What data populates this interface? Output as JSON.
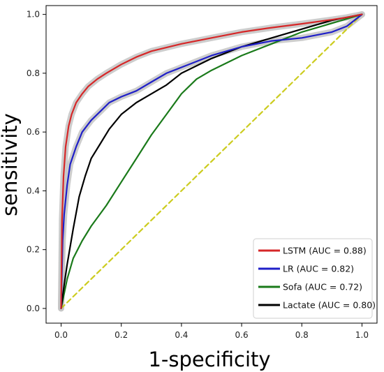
{
  "chart_data": {
    "type": "line",
    "xlabel": "1-specificity",
    "ylabel": "sensitivity",
    "xlim": [
      -0.05,
      1.05
    ],
    "ylim": [
      -0.05,
      1.03
    ],
    "xticks": [
      "0.0",
      "0.2",
      "0.4",
      "0.6",
      "0.8",
      "1.0"
    ],
    "yticks": [
      "0.0",
      "0.2",
      "0.4",
      "0.6",
      "0.8",
      "1.0"
    ],
    "grid": false,
    "legend_position": "bottom-right",
    "series": [
      {
        "name": "LSTM (AUC = 0.88)",
        "color": "#d62728",
        "band": true,
        "x": [
          0,
          0.003,
          0.008,
          0.015,
          0.025,
          0.035,
          0.05,
          0.07,
          0.09,
          0.12,
          0.15,
          0.2,
          0.25,
          0.3,
          0.4,
          0.5,
          0.6,
          0.7,
          0.8,
          0.9,
          0.95,
          1.0
        ],
        "y": [
          0,
          0.3,
          0.45,
          0.55,
          0.62,
          0.66,
          0.7,
          0.73,
          0.755,
          0.78,
          0.8,
          0.83,
          0.855,
          0.875,
          0.9,
          0.92,
          0.94,
          0.955,
          0.968,
          0.982,
          0.99,
          1.0
        ]
      },
      {
        "name": "LR (AUC = 0.82)",
        "color": "#1f1fc8",
        "band": true,
        "x": [
          0,
          0.005,
          0.01,
          0.02,
          0.03,
          0.05,
          0.07,
          0.1,
          0.13,
          0.16,
          0.2,
          0.25,
          0.3,
          0.35,
          0.4,
          0.5,
          0.6,
          0.7,
          0.8,
          0.9,
          0.95,
          1.0
        ],
        "y": [
          0,
          0.23,
          0.32,
          0.42,
          0.49,
          0.55,
          0.6,
          0.64,
          0.67,
          0.7,
          0.72,
          0.74,
          0.77,
          0.8,
          0.82,
          0.86,
          0.89,
          0.91,
          0.92,
          0.94,
          0.96,
          1.0
        ]
      },
      {
        "name": "Sofa (AUC = 0.72)",
        "color": "#1a7a1a",
        "band": false,
        "x": [
          0,
          0.02,
          0.04,
          0.07,
          0.1,
          0.15,
          0.2,
          0.25,
          0.3,
          0.35,
          0.4,
          0.45,
          0.5,
          0.6,
          0.7,
          0.8,
          0.9,
          1.0
        ],
        "y": [
          0,
          0.1,
          0.17,
          0.23,
          0.28,
          0.35,
          0.43,
          0.51,
          0.59,
          0.66,
          0.73,
          0.78,
          0.81,
          0.86,
          0.9,
          0.94,
          0.97,
          1.0
        ]
      },
      {
        "name": "Lactate (AUC = 0.80)",
        "color": "#000000",
        "band": false,
        "x": [
          0,
          0.01,
          0.02,
          0.04,
          0.06,
          0.08,
          0.1,
          0.13,
          0.16,
          0.2,
          0.25,
          0.3,
          0.35,
          0.4,
          0.5,
          0.6,
          0.7,
          0.8,
          0.9,
          1.0
        ],
        "y": [
          0,
          0.08,
          0.15,
          0.27,
          0.38,
          0.45,
          0.51,
          0.56,
          0.61,
          0.66,
          0.7,
          0.73,
          0.76,
          0.8,
          0.85,
          0.89,
          0.92,
          0.95,
          0.98,
          1.0
        ]
      },
      {
        "name": "",
        "color": "#cccc1f",
        "dashed": true,
        "x": [
          0,
          1
        ],
        "y": [
          0,
          1
        ]
      }
    ]
  }
}
